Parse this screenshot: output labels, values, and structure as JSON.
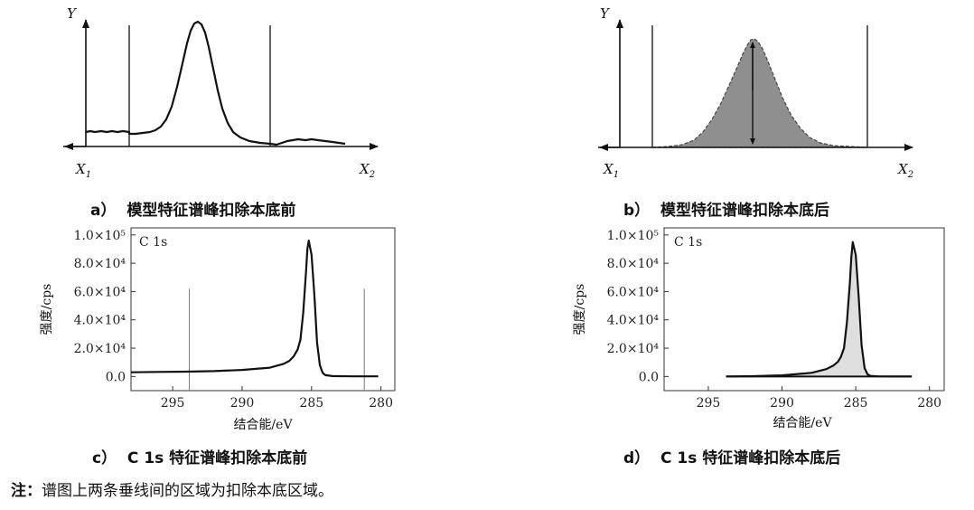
{
  "captions": {
    "a_label": "a）",
    "a_text": "模型特征谱峰扣除本底前",
    "b_label": "b）",
    "b_text": "模型特征谱峰扣除本底后",
    "c_label": "c）",
    "c_text": "C 1s 特征谱峰扣除本底前",
    "d_label": "d）",
    "d_text": "C 1s 特征谱峰扣除本底后"
  },
  "note": {
    "prefix": "注：",
    "text": "谱图上两条垂线间的区域为扣除本底区域。"
  },
  "model_axes": {
    "y_symbol": "Y",
    "x1": "X",
    "x1_sub": "1",
    "x2": "X",
    "x2_sub": "2"
  },
  "chart_data": [
    {
      "type": "line",
      "panel": "c",
      "label": "C 1s",
      "xlabel": "结合能/eV",
      "ylabel": "强度/cps",
      "x_reversed": true,
      "xlim": [
        298,
        279
      ],
      "ylim": [
        -10000,
        105000
      ],
      "x_ticks": [
        "295",
        "290",
        "285",
        "280"
      ],
      "y_ticks": [
        "0.0",
        "2.0×10⁴",
        "4.0×10⁴",
        "6.0×10⁴",
        "8.0×10⁴",
        "1.0×10⁵"
      ],
      "vertical_markers": [
        293.8,
        281.2
      ],
      "series": [
        {
          "x": [
            298,
            296,
            294,
            292,
            290,
            288,
            287,
            286.6,
            286.3,
            286,
            285.8,
            285.6,
            285.4,
            285.3,
            285.2,
            285,
            284.8,
            284.6,
            284.4,
            284.2,
            284,
            283.5,
            283,
            282,
            281.5,
            280.2
          ],
          "y": [
            3000,
            3200,
            3400,
            3800,
            4600,
            6200,
            9000,
            11000,
            14000,
            19000,
            26000,
            45000,
            73000,
            90000,
            96000,
            86000,
            58000,
            24000,
            8000,
            2500,
            900,
            300,
            200,
            100,
            100,
            100
          ]
        }
      ]
    },
    {
      "type": "area",
      "panel": "d",
      "label": "C 1s",
      "xlabel": "结合能/eV",
      "ylabel": "强度/cps",
      "x_reversed": true,
      "xlim": [
        298,
        279
      ],
      "ylim": [
        -10000,
        105000
      ],
      "x_ticks": [
        "295",
        "290",
        "285",
        "280"
      ],
      "y_ticks": [
        "0.0",
        "2.0×10⁴",
        "4.0×10⁴",
        "6.0×10⁴",
        "8.0×10⁴",
        "1.0×10⁵"
      ],
      "series": [
        {
          "x": [
            293.8,
            292,
            290,
            288,
            287,
            286.5,
            286.2,
            286,
            285.8,
            285.6,
            285.4,
            285.3,
            285.2,
            285,
            284.8,
            284.6,
            284.4,
            284.2,
            284,
            283.5,
            282,
            281.2
          ],
          "y": [
            0,
            200,
            800,
            2600,
            5200,
            7800,
            10500,
            14000,
            20000,
            38000,
            66000,
            84000,
            95000,
            86000,
            56000,
            22000,
            6000,
            1500,
            400,
            100,
            0,
            0
          ]
        }
      ]
    }
  ]
}
